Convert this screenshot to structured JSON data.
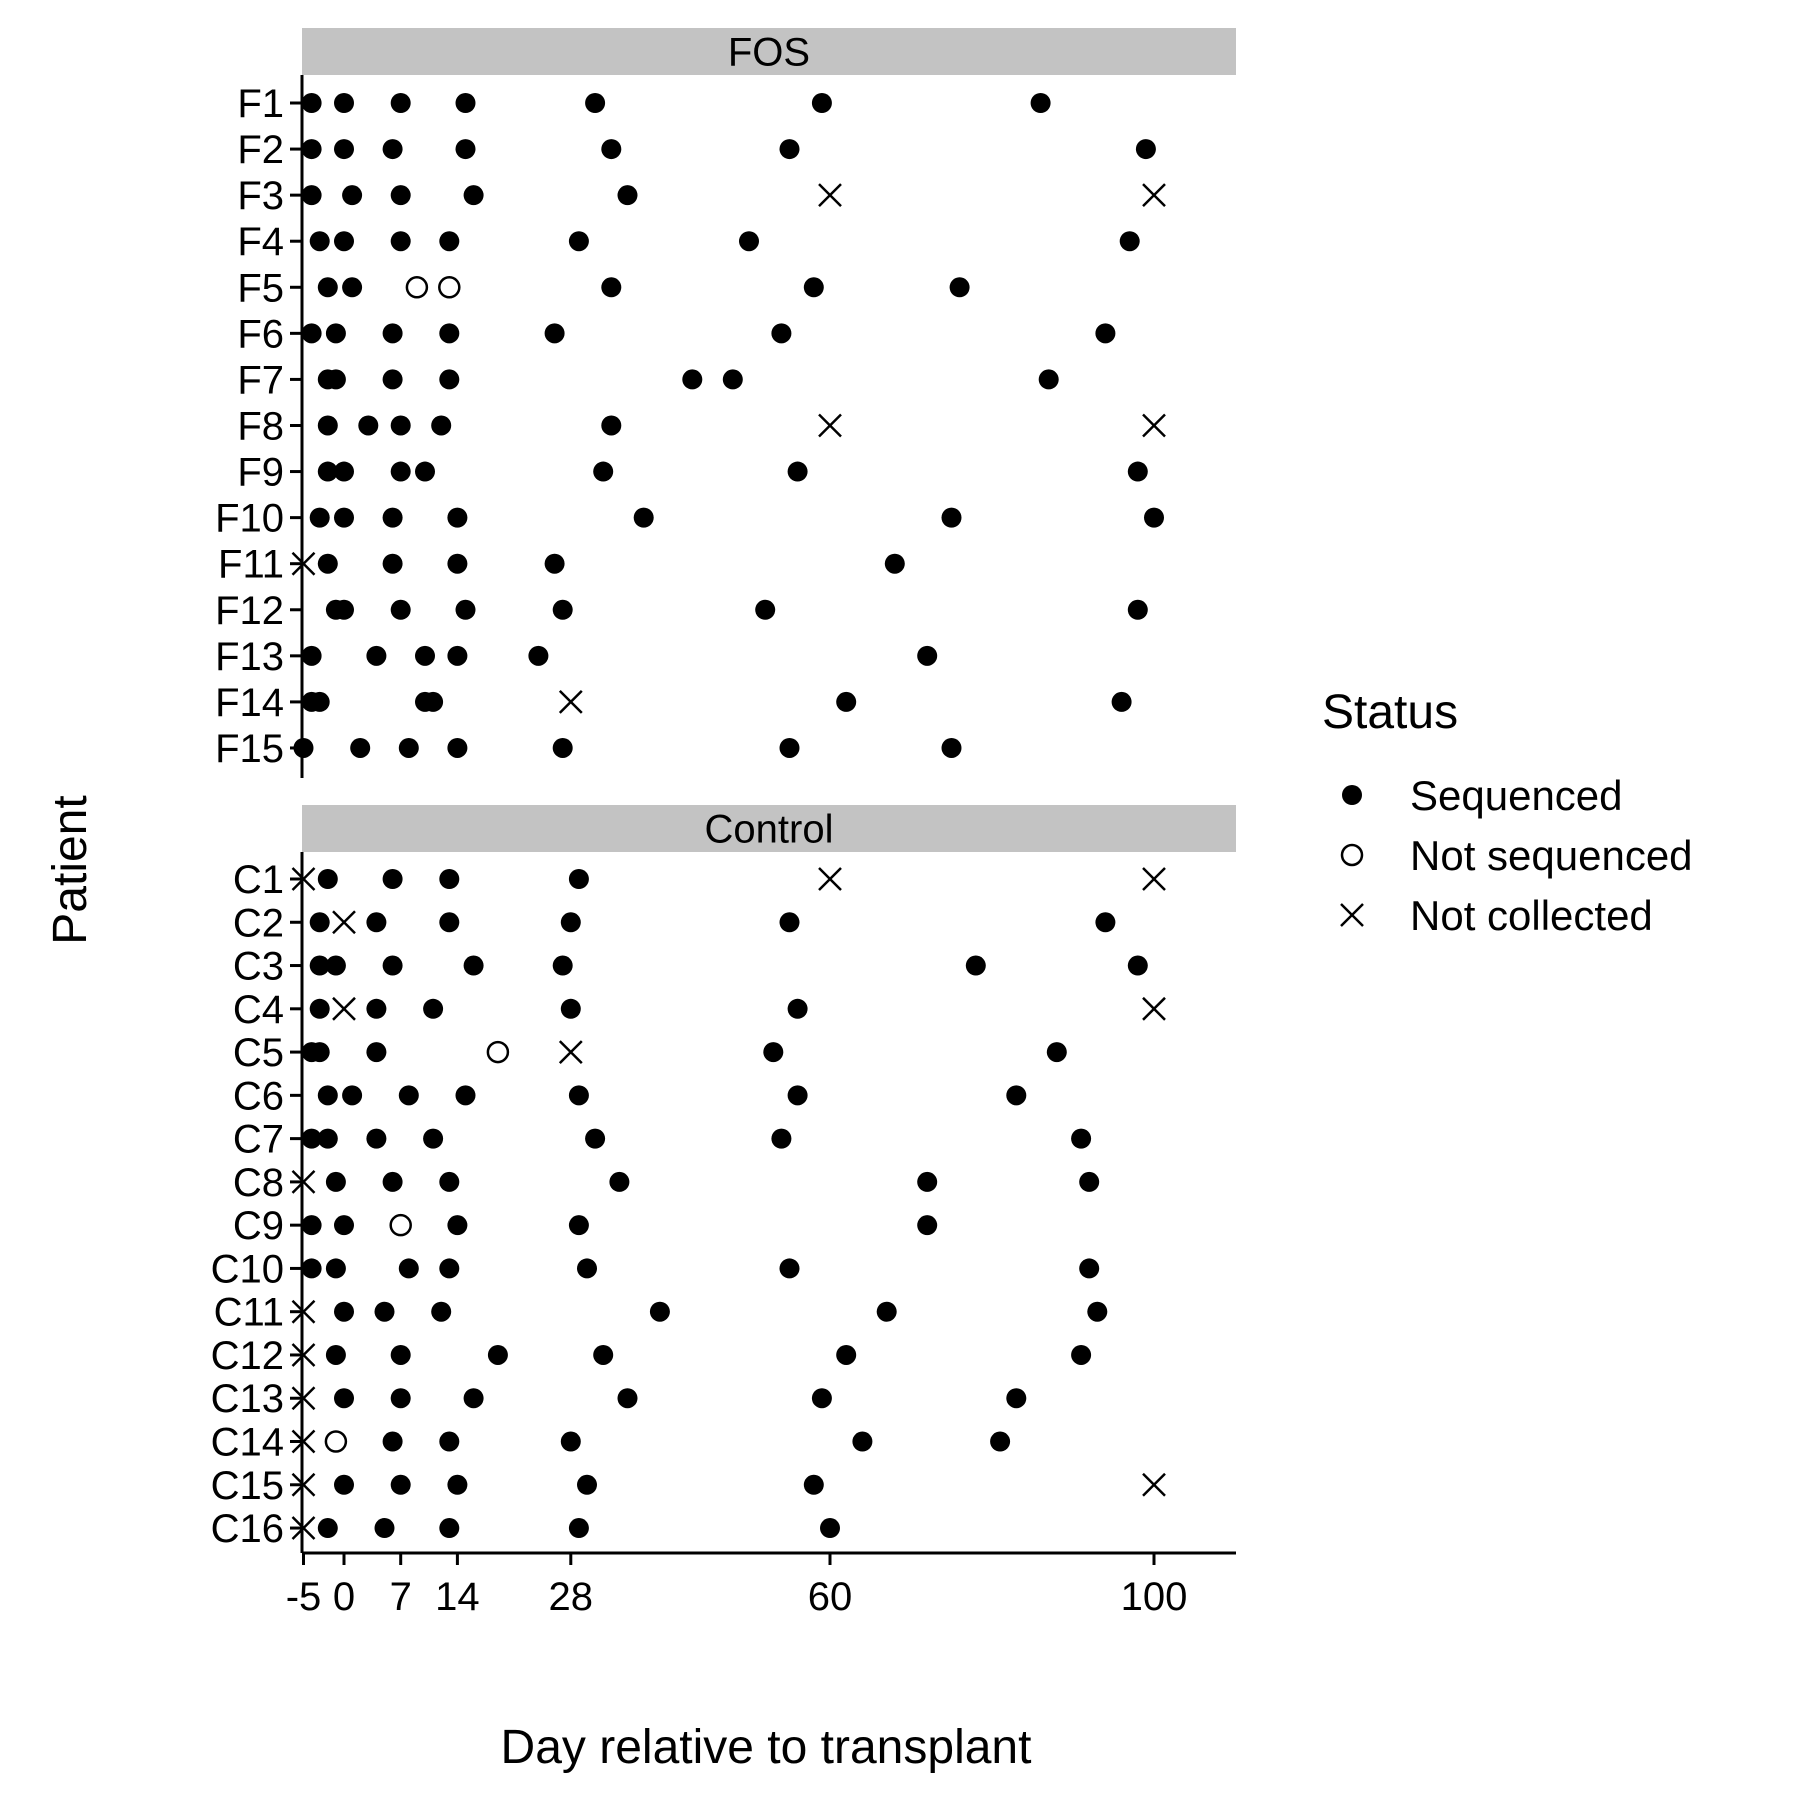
{
  "chart_data": {
    "type": "scatter",
    "xlabel": "Day relative to transplant",
    "ylabel": "Patient",
    "x_ticks": [
      -5,
      0,
      7,
      14,
      28,
      60,
      100
    ],
    "x_tick_labels": [
      "-5",
      "0",
      "7",
      "14",
      "28",
      "60",
      "100"
    ],
    "xlim": [
      -10,
      105
    ],
    "grid": false,
    "legend": {
      "title": "Status",
      "position": "right",
      "entries": [
        {
          "label": "Sequenced",
          "shape": "filled-circle"
        },
        {
          "label": "Not sequenced",
          "shape": "open-circle"
        },
        {
          "label": "Not collected",
          "shape": "cross"
        }
      ]
    },
    "status_codes": {
      "S": "Sequenced",
      "N": "Not sequenced",
      "X": "Not collected"
    },
    "panels": [
      {
        "title": "FOS",
        "patients": [
          {
            "id": "F1",
            "points": [
              [
                -4,
                "S"
              ],
              [
                0,
                "S"
              ],
              [
                7,
                "S"
              ],
              [
                15,
                "S"
              ],
              [
                31,
                "S"
              ],
              [
                59,
                "S"
              ],
              [
                86,
                "S"
              ]
            ]
          },
          {
            "id": "F2",
            "points": [
              [
                -4,
                "S"
              ],
              [
                0,
                "S"
              ],
              [
                6,
                "S"
              ],
              [
                15,
                "S"
              ],
              [
                33,
                "S"
              ],
              [
                55,
                "S"
              ],
              [
                99,
                "S"
              ]
            ]
          },
          {
            "id": "F3",
            "points": [
              [
                -4,
                "S"
              ],
              [
                1,
                "S"
              ],
              [
                7,
                "S"
              ],
              [
                16,
                "S"
              ],
              [
                35,
                "S"
              ],
              [
                60,
                "X"
              ],
              [
                100,
                "X"
              ]
            ]
          },
          {
            "id": "F4",
            "points": [
              [
                -3,
                "S"
              ],
              [
                0,
                "S"
              ],
              [
                7,
                "S"
              ],
              [
                13,
                "S"
              ],
              [
                29,
                "S"
              ],
              [
                50,
                "S"
              ],
              [
                97,
                "S"
              ]
            ]
          },
          {
            "id": "F5",
            "points": [
              [
                -2,
                "S"
              ],
              [
                1,
                "S"
              ],
              [
                9,
                "N"
              ],
              [
                13,
                "N"
              ],
              [
                33,
                "S"
              ],
              [
                58,
                "S"
              ],
              [
                76,
                "S"
              ]
            ]
          },
          {
            "id": "F6",
            "points": [
              [
                -4,
                "S"
              ],
              [
                -1,
                "S"
              ],
              [
                6,
                "S"
              ],
              [
                13,
                "S"
              ],
              [
                26,
                "S"
              ],
              [
                54,
                "S"
              ],
              [
                94,
                "S"
              ]
            ]
          },
          {
            "id": "F7",
            "points": [
              [
                -2,
                "S"
              ],
              [
                -1,
                "S"
              ],
              [
                6,
                "S"
              ],
              [
                13,
                "S"
              ],
              [
                43,
                "S"
              ],
              [
                48,
                "S"
              ],
              [
                87,
                "S"
              ]
            ]
          },
          {
            "id": "F8",
            "points": [
              [
                -2,
                "S"
              ],
              [
                3,
                "S"
              ],
              [
                7,
                "S"
              ],
              [
                12,
                "S"
              ],
              [
                33,
                "S"
              ],
              [
                60,
                "X"
              ],
              [
                100,
                "X"
              ]
            ]
          },
          {
            "id": "F9",
            "points": [
              [
                -2,
                "S"
              ],
              [
                0,
                "S"
              ],
              [
                7,
                "S"
              ],
              [
                10,
                "S"
              ],
              [
                32,
                "S"
              ],
              [
                56,
                "S"
              ],
              [
                98,
                "S"
              ]
            ]
          },
          {
            "id": "F10",
            "points": [
              [
                -3,
                "S"
              ],
              [
                0,
                "S"
              ],
              [
                6,
                "S"
              ],
              [
                14,
                "S"
              ],
              [
                37,
                "S"
              ],
              [
                75,
                "S"
              ],
              [
                100,
                "S"
              ]
            ]
          },
          {
            "id": "F11",
            "points": [
              [
                -5,
                "X"
              ],
              [
                -2,
                "S"
              ],
              [
                6,
                "S"
              ],
              [
                14,
                "S"
              ],
              [
                26,
                "S"
              ],
              [
                68,
                "S"
              ]
            ]
          },
          {
            "id": "F12",
            "points": [
              [
                -1,
                "S"
              ],
              [
                0,
                "S"
              ],
              [
                7,
                "S"
              ],
              [
                15,
                "S"
              ],
              [
                27,
                "S"
              ],
              [
                52,
                "S"
              ],
              [
                98,
                "S"
              ]
            ]
          },
          {
            "id": "F13",
            "points": [
              [
                -4,
                "S"
              ],
              [
                4,
                "S"
              ],
              [
                10,
                "S"
              ],
              [
                14,
                "S"
              ],
              [
                24,
                "S"
              ],
              [
                72,
                "S"
              ]
            ]
          },
          {
            "id": "F14",
            "points": [
              [
                -4,
                "S"
              ],
              [
                -3,
                "S"
              ],
              [
                10,
                "S"
              ],
              [
                11,
                "S"
              ],
              [
                28,
                "X"
              ],
              [
                62,
                "S"
              ],
              [
                96,
                "S"
              ]
            ]
          },
          {
            "id": "F15",
            "points": [
              [
                -5,
                "S"
              ],
              [
                2,
                "S"
              ],
              [
                8,
                "S"
              ],
              [
                14,
                "S"
              ],
              [
                27,
                "S"
              ],
              [
                55,
                "S"
              ],
              [
                75,
                "S"
              ]
            ]
          }
        ]
      },
      {
        "title": "Control",
        "patients": [
          {
            "id": "C1",
            "points": [
              [
                -5,
                "X"
              ],
              [
                -2,
                "S"
              ],
              [
                6,
                "S"
              ],
              [
                13,
                "S"
              ],
              [
                29,
                "S"
              ],
              [
                60,
                "X"
              ],
              [
                100,
                "X"
              ]
            ]
          },
          {
            "id": "C2",
            "points": [
              [
                -3,
                "S"
              ],
              [
                0,
                "X"
              ],
              [
                4,
                "S"
              ],
              [
                13,
                "S"
              ],
              [
                28,
                "S"
              ],
              [
                55,
                "S"
              ],
              [
                94,
                "S"
              ]
            ]
          },
          {
            "id": "C3",
            "points": [
              [
                -3,
                "S"
              ],
              [
                -1,
                "S"
              ],
              [
                6,
                "S"
              ],
              [
                16,
                "S"
              ],
              [
                27,
                "S"
              ],
              [
                78,
                "S"
              ],
              [
                98,
                "S"
              ]
            ]
          },
          {
            "id": "C4",
            "points": [
              [
                -3,
                "S"
              ],
              [
                0,
                "X"
              ],
              [
                4,
                "S"
              ],
              [
                11,
                "S"
              ],
              [
                28,
                "S"
              ],
              [
                56,
                "S"
              ],
              [
                100,
                "X"
              ]
            ]
          },
          {
            "id": "C5",
            "points": [
              [
                -4,
                "S"
              ],
              [
                -3,
                "S"
              ],
              [
                4,
                "S"
              ],
              [
                19,
                "N"
              ],
              [
                28,
                "X"
              ],
              [
                53,
                "S"
              ],
              [
                88,
                "S"
              ]
            ]
          },
          {
            "id": "C6",
            "points": [
              [
                -2,
                "S"
              ],
              [
                1,
                "S"
              ],
              [
                8,
                "S"
              ],
              [
                15,
                "S"
              ],
              [
                29,
                "S"
              ],
              [
                56,
                "S"
              ],
              [
                83,
                "S"
              ]
            ]
          },
          {
            "id": "C7",
            "points": [
              [
                -4,
                "S"
              ],
              [
                -2,
                "S"
              ],
              [
                4,
                "S"
              ],
              [
                11,
                "S"
              ],
              [
                31,
                "S"
              ],
              [
                54,
                "S"
              ],
              [
                91,
                "S"
              ]
            ]
          },
          {
            "id": "C8",
            "points": [
              [
                -5,
                "X"
              ],
              [
                -1,
                "S"
              ],
              [
                6,
                "S"
              ],
              [
                13,
                "S"
              ],
              [
                34,
                "S"
              ],
              [
                72,
                "S"
              ],
              [
                92,
                "S"
              ]
            ]
          },
          {
            "id": "C9",
            "points": [
              [
                -4,
                "S"
              ],
              [
                0,
                "S"
              ],
              [
                7,
                "N"
              ],
              [
                14,
                "S"
              ],
              [
                29,
                "S"
              ],
              [
                72,
                "S"
              ]
            ]
          },
          {
            "id": "C10",
            "points": [
              [
                -4,
                "S"
              ],
              [
                -1,
                "S"
              ],
              [
                8,
                "S"
              ],
              [
                13,
                "S"
              ],
              [
                30,
                "S"
              ],
              [
                55,
                "S"
              ],
              [
                92,
                "S"
              ]
            ]
          },
          {
            "id": "C11",
            "points": [
              [
                -5,
                "X"
              ],
              [
                0,
                "S"
              ],
              [
                5,
                "S"
              ],
              [
                12,
                "S"
              ],
              [
                39,
                "S"
              ],
              [
                67,
                "S"
              ],
              [
                93,
                "S"
              ]
            ]
          },
          {
            "id": "C12",
            "points": [
              [
                -5,
                "X"
              ],
              [
                -1,
                "S"
              ],
              [
                7,
                "S"
              ],
              [
                19,
                "S"
              ],
              [
                32,
                "S"
              ],
              [
                62,
                "S"
              ],
              [
                91,
                "S"
              ]
            ]
          },
          {
            "id": "C13",
            "points": [
              [
                -5,
                "X"
              ],
              [
                0,
                "S"
              ],
              [
                7,
                "S"
              ],
              [
                16,
                "S"
              ],
              [
                35,
                "S"
              ],
              [
                59,
                "S"
              ],
              [
                83,
                "S"
              ]
            ]
          },
          {
            "id": "C14",
            "points": [
              [
                -5,
                "X"
              ],
              [
                -1,
                "N"
              ],
              [
                6,
                "S"
              ],
              [
                13,
                "S"
              ],
              [
                28,
                "S"
              ],
              [
                64,
                "S"
              ],
              [
                81,
                "S"
              ]
            ]
          },
          {
            "id": "C15",
            "points": [
              [
                -5,
                "X"
              ],
              [
                0,
                "S"
              ],
              [
                7,
                "S"
              ],
              [
                14,
                "S"
              ],
              [
                30,
                "S"
              ],
              [
                58,
                "S"
              ],
              [
                100,
                "X"
              ]
            ]
          },
          {
            "id": "C16",
            "points": [
              [
                -5,
                "X"
              ],
              [
                -2,
                "S"
              ],
              [
                5,
                "S"
              ],
              [
                13,
                "S"
              ],
              [
                29,
                "S"
              ],
              [
                60,
                "S"
              ]
            ]
          }
        ]
      }
    ]
  }
}
